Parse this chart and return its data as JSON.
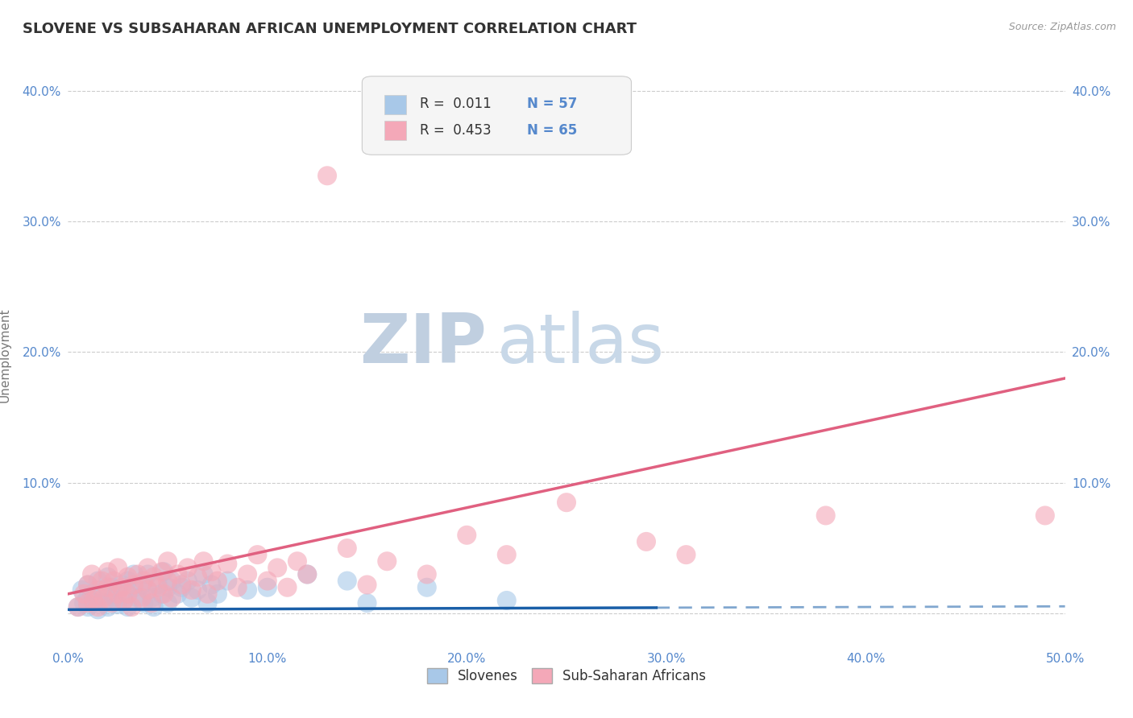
{
  "title": "SLOVENE VS SUBSAHARAN AFRICAN UNEMPLOYMENT CORRELATION CHART",
  "source": "Source: ZipAtlas.com",
  "ylabel": "Unemployment",
  "xlim": [
    0.0,
    0.5
  ],
  "ylim": [
    -0.025,
    0.42
  ],
  "xticks": [
    0.0,
    0.1,
    0.2,
    0.3,
    0.4,
    0.5
  ],
  "yticks": [
    0.0,
    0.1,
    0.2,
    0.3,
    0.4
  ],
  "xticklabels": [
    "0.0%",
    "10.0%",
    "20.0%",
    "30.0%",
    "40.0%",
    "50.0%"
  ],
  "yticklabels": [
    "",
    "10.0%",
    "20.0%",
    "30.0%",
    "40.0%"
  ],
  "right_yticklabels": [
    "",
    "10.0%",
    "20.0%",
    "30.0%",
    "40.0%"
  ],
  "legend1_r": "0.011",
  "legend1_n": "57",
  "legend2_r": "0.453",
  "legend2_n": "65",
  "slovene_color": "#a8c8e8",
  "subsaharan_color": "#f4a8b8",
  "slovene_line_color": "#1a5fa8",
  "subsaharan_line_color": "#e06080",
  "watermark_zip": "ZIP",
  "watermark_atlas": "atlas",
  "background_color": "#ffffff",
  "grid_color": "#cccccc",
  "title_color": "#333333",
  "axis_label_color": "#5588cc",
  "tick_color": "#5588cc",
  "watermark_color_zip": "#c0cfe0",
  "watermark_color_atlas": "#c8d8e8",
  "figsize": [
    14.06,
    8.92
  ],
  "dpi": 100,
  "slovene_scatter": [
    [
      0.005,
      0.005
    ],
    [
      0.007,
      0.018
    ],
    [
      0.008,
      0.008
    ],
    [
      0.01,
      0.012
    ],
    [
      0.01,
      0.005
    ],
    [
      0.01,
      0.022
    ],
    [
      0.012,
      0.015
    ],
    [
      0.013,
      0.008
    ],
    [
      0.015,
      0.01
    ],
    [
      0.015,
      0.025
    ],
    [
      0.015,
      0.003
    ],
    [
      0.017,
      0.018
    ],
    [
      0.018,
      0.008
    ],
    [
      0.02,
      0.015
    ],
    [
      0.02,
      0.028
    ],
    [
      0.02,
      0.005
    ],
    [
      0.022,
      0.02
    ],
    [
      0.023,
      0.012
    ],
    [
      0.025,
      0.018
    ],
    [
      0.025,
      0.007
    ],
    [
      0.027,
      0.022
    ],
    [
      0.028,
      0.01
    ],
    [
      0.03,
      0.025
    ],
    [
      0.03,
      0.015
    ],
    [
      0.03,
      0.005
    ],
    [
      0.033,
      0.02
    ],
    [
      0.033,
      0.03
    ],
    [
      0.035,
      0.012
    ],
    [
      0.037,
      0.022
    ],
    [
      0.038,
      0.008
    ],
    [
      0.04,
      0.018
    ],
    [
      0.04,
      0.03
    ],
    [
      0.042,
      0.012
    ],
    [
      0.043,
      0.005
    ],
    [
      0.045,
      0.022
    ],
    [
      0.047,
      0.015
    ],
    [
      0.048,
      0.032
    ],
    [
      0.05,
      0.02
    ],
    [
      0.05,
      0.008
    ],
    [
      0.052,
      0.025
    ],
    [
      0.055,
      0.015
    ],
    [
      0.057,
      0.02
    ],
    [
      0.06,
      0.025
    ],
    [
      0.062,
      0.012
    ],
    [
      0.065,
      0.018
    ],
    [
      0.068,
      0.03
    ],
    [
      0.07,
      0.008
    ],
    [
      0.072,
      0.022
    ],
    [
      0.075,
      0.015
    ],
    [
      0.08,
      0.025
    ],
    [
      0.09,
      0.018
    ],
    [
      0.1,
      0.02
    ],
    [
      0.12,
      0.03
    ],
    [
      0.14,
      0.025
    ],
    [
      0.15,
      0.008
    ],
    [
      0.18,
      0.02
    ],
    [
      0.22,
      0.01
    ]
  ],
  "subsaharan_scatter": [
    [
      0.005,
      0.005
    ],
    [
      0.008,
      0.015
    ],
    [
      0.01,
      0.008
    ],
    [
      0.01,
      0.022
    ],
    [
      0.012,
      0.03
    ],
    [
      0.013,
      0.01
    ],
    [
      0.015,
      0.018
    ],
    [
      0.015,
      0.005
    ],
    [
      0.017,
      0.025
    ],
    [
      0.018,
      0.012
    ],
    [
      0.02,
      0.02
    ],
    [
      0.02,
      0.032
    ],
    [
      0.022,
      0.008
    ],
    [
      0.023,
      0.025
    ],
    [
      0.025,
      0.015
    ],
    [
      0.025,
      0.035
    ],
    [
      0.027,
      0.02
    ],
    [
      0.028,
      0.01
    ],
    [
      0.03,
      0.028
    ],
    [
      0.03,
      0.015
    ],
    [
      0.032,
      0.005
    ],
    [
      0.033,
      0.022
    ],
    [
      0.035,
      0.03
    ],
    [
      0.037,
      0.012
    ],
    [
      0.038,
      0.025
    ],
    [
      0.04,
      0.018
    ],
    [
      0.04,
      0.035
    ],
    [
      0.042,
      0.008
    ],
    [
      0.043,
      0.028
    ],
    [
      0.045,
      0.02
    ],
    [
      0.047,
      0.032
    ],
    [
      0.048,
      0.015
    ],
    [
      0.05,
      0.025
    ],
    [
      0.05,
      0.04
    ],
    [
      0.052,
      0.012
    ],
    [
      0.055,
      0.03
    ],
    [
      0.057,
      0.022
    ],
    [
      0.06,
      0.035
    ],
    [
      0.062,
      0.018
    ],
    [
      0.065,
      0.028
    ],
    [
      0.068,
      0.04
    ],
    [
      0.07,
      0.015
    ],
    [
      0.072,
      0.032
    ],
    [
      0.075,
      0.025
    ],
    [
      0.08,
      0.038
    ],
    [
      0.085,
      0.02
    ],
    [
      0.09,
      0.03
    ],
    [
      0.095,
      0.045
    ],
    [
      0.1,
      0.025
    ],
    [
      0.105,
      0.035
    ],
    [
      0.11,
      0.02
    ],
    [
      0.115,
      0.04
    ],
    [
      0.12,
      0.03
    ],
    [
      0.13,
      0.335
    ],
    [
      0.14,
      0.05
    ],
    [
      0.15,
      0.022
    ],
    [
      0.16,
      0.04
    ],
    [
      0.18,
      0.03
    ],
    [
      0.2,
      0.06
    ],
    [
      0.22,
      0.045
    ],
    [
      0.25,
      0.085
    ],
    [
      0.29,
      0.055
    ],
    [
      0.31,
      0.045
    ],
    [
      0.38,
      0.075
    ],
    [
      0.49,
      0.075
    ]
  ]
}
